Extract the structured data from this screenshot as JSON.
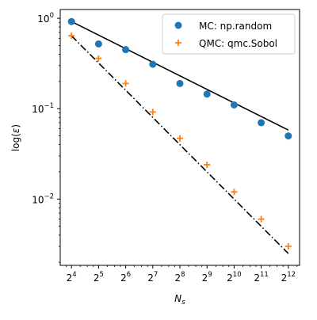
{
  "colors": {
    "mc": "#1f77b4",
    "qmc": "#ff7f0e",
    "fit": "#000000",
    "axes": "#000000",
    "legend_border": "#cccccc"
  },
  "chart_data": {
    "type": "scatter",
    "x_scale": "log2",
    "y_scale": "log10",
    "xlabel_base": "N",
    "xlabel_sub": "s",
    "ylabel_pre": "log(",
    "ylabel_sym": "ε",
    "ylabel_post": ")",
    "xlim": [
      12,
      5461
    ],
    "ylim": [
      0.00185,
      1.25
    ],
    "x": [
      16,
      32,
      64,
      128,
      256,
      512,
      1024,
      2048,
      4096
    ],
    "x_ticks": [
      {
        "base": "2",
        "exp": "4"
      },
      {
        "base": "2",
        "exp": "5"
      },
      {
        "base": "2",
        "exp": "6"
      },
      {
        "base": "2",
        "exp": "7"
      },
      {
        "base": "2",
        "exp": "8"
      },
      {
        "base": "2",
        "exp": "9"
      },
      {
        "base": "2",
        "exp": "10"
      },
      {
        "base": "2",
        "exp": "11"
      },
      {
        "base": "2",
        "exp": "12"
      }
    ],
    "y_ticks": [
      {
        "value": 1,
        "base": "10",
        "exp": "0"
      },
      {
        "value": 0.1,
        "base": "10",
        "exp": "−1"
      },
      {
        "value": 0.01,
        "base": "10",
        "exp": "−2"
      }
    ],
    "series": [
      {
        "name": "MC: np.random",
        "marker": "circle",
        "values": [
          0.92,
          0.52,
          0.45,
          0.31,
          0.19,
          0.145,
          0.11,
          0.07,
          0.05
        ]
      },
      {
        "name": "QMC: qmc.Sobol",
        "marker": "plus",
        "values": [
          0.64,
          0.36,
          0.19,
          0.092,
          0.047,
          0.024,
          0.012,
          0.006,
          0.003
        ]
      }
    ],
    "reference_lines": [
      {
        "style": "solid",
        "x": [
          16,
          4096
        ],
        "y": [
          0.92,
          0.058
        ]
      },
      {
        "style": "dashdot",
        "x": [
          16,
          4096
        ],
        "y": [
          0.64,
          0.0025
        ]
      }
    ],
    "legend": "top-right",
    "grid": false
  }
}
